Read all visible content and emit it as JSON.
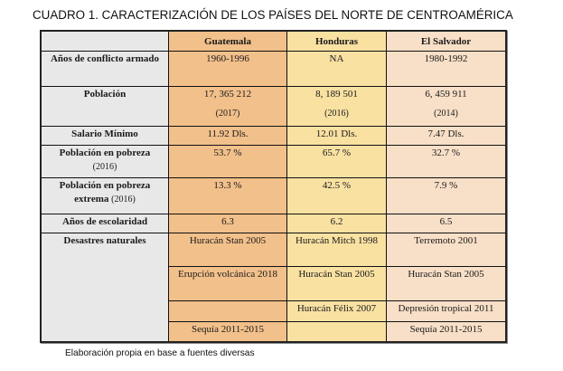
{
  "title": "CUADRO 1. CARACTERIZACIÓN DE LOS PAÍSES DEL NORTE DE CENTROAMÉRICA",
  "colors": {
    "label_column": "#e8e8e8",
    "guatemala": "#f2c08b",
    "honduras": "#f9e1a2",
    "el_salvador": "#f8dfc7"
  },
  "table": {
    "headers": [
      "",
      "Guatemala",
      "Honduras",
      "El Salvador"
    ],
    "rows": {
      "conflicto": {
        "label": "Años de conflicto armado",
        "values": [
          "1960-1996",
          "NA",
          "1980-1992"
        ]
      },
      "poblacion": {
        "label": "Población",
        "values": [
          "17, 365 212",
          "8, 189 501",
          "6, 459 911"
        ],
        "years": [
          "(2017)",
          "(2016)",
          "(2014)"
        ]
      },
      "salario": {
        "label": "Salario Mínimo",
        "values": [
          "11.92 Dls.",
          "12.01 Dls.",
          "7.47 Dls."
        ]
      },
      "pobreza": {
        "label": "Población en pobreza",
        "label_note": "(2016)",
        "values": [
          "53.7 %",
          "65.7 %",
          "32.7 %"
        ]
      },
      "pobreza_extrema": {
        "label": "Población en pobreza extrema",
        "label_note": "(2016)",
        "values": [
          "13.3 %",
          "42.5 %",
          "7.9 %"
        ]
      },
      "escolaridad": {
        "label": "Años de escolaridad",
        "values": [
          "6.3",
          "6.2",
          "6.5"
        ]
      },
      "desastres": {
        "label": "Desastres naturales",
        "entries": [
          [
            "Huracán Stan 2005",
            "Huracán Mitch 1998",
            "Terremoto 2001"
          ],
          [
            "Erupción volcánica 2018",
            "Huracán Stan 2005",
            "Huracán Stan 2005"
          ],
          [
            "",
            "Huracán Félix 2007",
            "Depresión tropical 2011"
          ],
          [
            "Sequía 2011-2015",
            "",
            "Sequía 2011-2015"
          ]
        ]
      }
    }
  },
  "caption": "Elaboración propia en base a fuentes diversas"
}
